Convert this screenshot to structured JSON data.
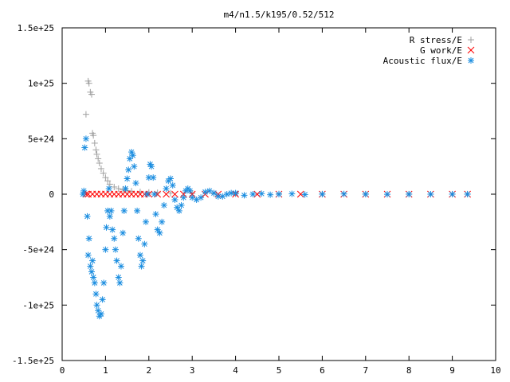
{
  "chart_data": {
    "type": "scatter",
    "title": "m4/n1.5/k195/0.52/512",
    "xlim": [
      0,
      10
    ],
    "ylim": [
      -1.5e+25,
      1.5e+25
    ],
    "x_ticks": [
      0,
      1,
      2,
      3,
      4,
      5,
      6,
      7,
      8,
      9,
      10
    ],
    "x_tick_labels": [
      "0",
      "1",
      "2",
      "3",
      "4",
      "5",
      "6",
      "7",
      "8",
      "9",
      "10"
    ],
    "y_ticks": [
      -1.5e+25,
      -1e+25,
      -5e+24,
      0,
      5e+24,
      1e+25,
      1.5e+25
    ],
    "y_tick_labels": [
      "-1.5e+25",
      "-1e+25",
      "-5e+24",
      "0",
      "5e+24",
      "1e+25",
      "1.5e+25"
    ],
    "grid": false,
    "legend_position": "top-right",
    "series": [
      {
        "name": "R stress/E",
        "marker": "plus",
        "color": "#a0a0a0",
        "x": [
          0.55,
          0.6,
          0.62,
          0.65,
          0.68,
          0.7,
          0.72,
          0.75,
          0.78,
          0.8,
          0.83,
          0.86,
          0.9,
          0.95,
          1.0,
          1.05,
          1.1,
          1.2,
          1.3,
          1.4,
          1.5,
          1.6,
          1.8,
          2.0,
          2.2,
          2.5,
          3.0,
          3.5,
          4.0,
          5.0,
          6.0,
          7.0,
          8.0,
          9.0,
          9.35
        ],
        "y": [
          7.2e+24,
          1.02e+25,
          1e+25,
          9.2e+24,
          9e+24,
          5.5e+24,
          5.3e+24,
          4.6e+24,
          4e+24,
          3.6e+24,
          3.2e+24,
          2.8e+24,
          2.3e+24,
          1.9e+24,
          1.5e+24,
          1.2e+24,
          9e+23,
          6.5e+23,
          5e+23,
          4e+23,
          3.2e+23,
          2.7e+23,
          2e+23,
          1.6e+23,
          1.3e+23,
          1e+23,
          7e+22,
          5e+22,
          4e+22,
          3e+22,
          2e+22,
          1.5e+22,
          1.2e+22,
          1e+22,
          1e+22
        ]
      },
      {
        "name": "G work/E",
        "marker": "cross",
        "color": "#ff0000",
        "x": [
          0.55,
          0.6,
          0.7,
          0.8,
          0.9,
          1.0,
          1.1,
          1.2,
          1.3,
          1.4,
          1.5,
          1.6,
          1.7,
          1.8,
          1.9,
          2.0,
          2.2,
          2.4,
          2.6,
          2.8,
          3.0,
          3.3,
          3.6,
          4.0,
          4.5,
          5.0,
          5.5,
          6.0,
          6.5,
          7.0,
          7.5,
          8.0,
          8.5,
          9.0,
          9.35
        ],
        "y": [
          0,
          0,
          1e+22,
          1e+22,
          1e+22,
          1e+22,
          0,
          0,
          0,
          0,
          0,
          0,
          0,
          0,
          0,
          0,
          0,
          0,
          0,
          0,
          0,
          0,
          0,
          0,
          0,
          0,
          0,
          0,
          0,
          0,
          0,
          0,
          0,
          0,
          0
        ]
      },
      {
        "name": "Acoustic flux/E",
        "marker": "star",
        "color": "#1a8de0",
        "x": [
          0.48,
          0.5,
          0.52,
          0.55,
          0.58,
          0.6,
          0.62,
          0.65,
          0.68,
          0.7,
          0.72,
          0.75,
          0.78,
          0.8,
          0.83,
          0.86,
          0.9,
          0.93,
          0.96,
          1.0,
          1.02,
          1.05,
          1.08,
          1.1,
          1.13,
          1.16,
          1.2,
          1.23,
          1.26,
          1.3,
          1.33,
          1.36,
          1.4,
          1.43,
          1.46,
          1.5,
          1.53,
          1.56,
          1.6,
          1.63,
          1.66,
          1.7,
          1.73,
          1.76,
          1.8,
          1.83,
          1.86,
          1.9,
          1.93,
          1.96,
          2.0,
          2.03,
          2.06,
          2.1,
          2.13,
          2.16,
          2.2,
          2.25,
          2.3,
          2.35,
          2.4,
          2.45,
          2.5,
          2.55,
          2.6,
          2.65,
          2.7,
          2.75,
          2.8,
          2.85,
          2.9,
          2.95,
          3.0,
          3.1,
          3.2,
          3.3,
          3.4,
          3.5,
          3.6,
          3.7,
          3.8,
          3.9,
          4.0,
          4.2,
          4.4,
          4.6,
          4.8,
          5.0,
          5.3,
          5.6,
          6.0,
          6.5,
          7.0,
          7.5,
          8.0,
          8.5,
          9.0,
          9.35
        ],
        "y": [
          0,
          3e+23,
          4.2e+24,
          5e+24,
          -2e+24,
          -5.5e+24,
          -4e+24,
          -6.5e+24,
          -7e+24,
          -6e+24,
          -7.5e+24,
          -8e+24,
          -9e+24,
          -1e+25,
          -1.05e+25,
          -1.1e+25,
          -1.08e+25,
          -9.5e+24,
          -8e+24,
          -5e+24,
          -3e+24,
          -1.5e+24,
          5e+23,
          -2e+24,
          -1.5e+24,
          -3.2e+24,
          -4e+24,
          -5e+24,
          -6e+24,
          -7.5e+24,
          -8e+24,
          -6.5e+24,
          -3.5e+24,
          -1.5e+24,
          5e+23,
          1.4e+24,
          2.2e+24,
          3.2e+24,
          3.8e+24,
          3.5e+24,
          2.5e+24,
          1e+24,
          -1.5e+24,
          -4e+24,
          -5.5e+24,
          -6.5e+24,
          -6e+24,
          -4.5e+24,
          -2.5e+24,
          0,
          1.5e+24,
          2.7e+24,
          2.5e+24,
          1.5e+24,
          0,
          -1.8e+24,
          -3.2e+24,
          -3.5e+24,
          -2.5e+24,
          -1e+24,
          5e+23,
          1.2e+24,
          1.4e+24,
          8e+23,
          -5e+23,
          -1.2e+24,
          -1.5e+24,
          -1e+24,
          -3e+23,
          3e+23,
          5e+23,
          3e+23,
          -3e+23,
          -5e+23,
          -3e+23,
          2e+23,
          3e+23,
          1e+23,
          -2e+23,
          -2e+23,
          0,
          1e+23,
          1e+23,
          -1e+23,
          0,
          5e+22,
          -5e+22,
          0,
          3e+22,
          -3e+22,
          0,
          2e+22,
          0,
          -1e+22,
          0,
          0,
          0,
          0
        ]
      }
    ]
  }
}
